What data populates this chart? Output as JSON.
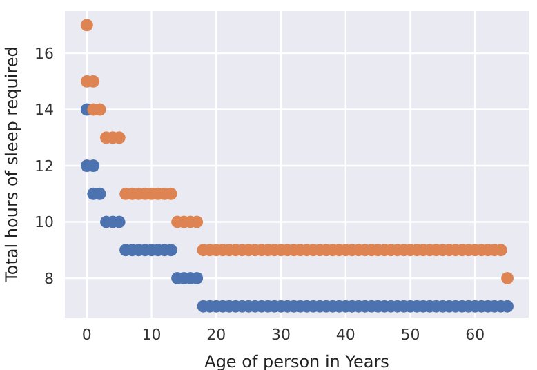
{
  "chart_data": {
    "type": "scatter",
    "xlabel": "Age of person in Years",
    "ylabel": "Total hours of sleep required",
    "xlim": [
      -3.4,
      68.3
    ],
    "xticks": [
      0,
      10,
      20,
      30,
      40,
      50,
      60
    ],
    "ylim": [
      6.6,
      17.5
    ],
    "yticks": [
      8,
      10,
      12,
      14,
      16
    ],
    "grid": true,
    "legend": false,
    "marker": "circle",
    "series": [
      {
        "color": "#4c72b0",
        "x": [
          0,
          0,
          1,
          1,
          2,
          3,
          4,
          5,
          6,
          7,
          8,
          9,
          10,
          11,
          12,
          13,
          14,
          15,
          16,
          17,
          18,
          19,
          20,
          21,
          22,
          23,
          24,
          25,
          26,
          27,
          28,
          29,
          30,
          31,
          32,
          33,
          34,
          35,
          36,
          37,
          38,
          39,
          40,
          41,
          42,
          43,
          44,
          45,
          46,
          47,
          48,
          49,
          50,
          51,
          52,
          53,
          54,
          55,
          56,
          57,
          58,
          59,
          60,
          61,
          62,
          63,
          64,
          65
        ],
        "values": [
          14,
          12,
          12,
          11,
          11,
          10,
          10,
          10,
          9,
          9,
          9,
          9,
          9,
          9,
          9,
          9,
          8,
          8,
          8,
          8,
          7,
          7,
          7,
          7,
          7,
          7,
          7,
          7,
          7,
          7,
          7,
          7,
          7,
          7,
          7,
          7,
          7,
          7,
          7,
          7,
          7,
          7,
          7,
          7,
          7,
          7,
          7,
          7,
          7,
          7,
          7,
          7,
          7,
          7,
          7,
          7,
          7,
          7,
          7,
          7,
          7,
          7,
          7,
          7,
          7,
          7,
          7,
          7
        ]
      },
      {
        "color": "#dd8452",
        "x": [
          0,
          0,
          1,
          1,
          2,
          3,
          4,
          5,
          6,
          7,
          8,
          9,
          10,
          11,
          12,
          13,
          14,
          15,
          16,
          17,
          18,
          19,
          20,
          21,
          22,
          23,
          24,
          25,
          26,
          27,
          28,
          29,
          30,
          31,
          32,
          33,
          34,
          35,
          36,
          37,
          38,
          39,
          40,
          41,
          42,
          43,
          44,
          45,
          46,
          47,
          48,
          49,
          50,
          51,
          52,
          53,
          54,
          55,
          56,
          57,
          58,
          59,
          60,
          61,
          62,
          63,
          64,
          65
        ],
        "values": [
          17,
          15,
          15,
          14,
          14,
          13,
          13,
          13,
          11,
          11,
          11,
          11,
          11,
          11,
          11,
          11,
          10,
          10,
          10,
          10,
          9,
          9,
          9,
          9,
          9,
          9,
          9,
          9,
          9,
          9,
          9,
          9,
          9,
          9,
          9,
          9,
          9,
          9,
          9,
          9,
          9,
          9,
          9,
          9,
          9,
          9,
          9,
          9,
          9,
          9,
          9,
          9,
          9,
          9,
          9,
          9,
          9,
          9,
          9,
          9,
          9,
          9,
          9,
          9,
          9,
          9,
          9,
          8
        ]
      }
    ]
  }
}
